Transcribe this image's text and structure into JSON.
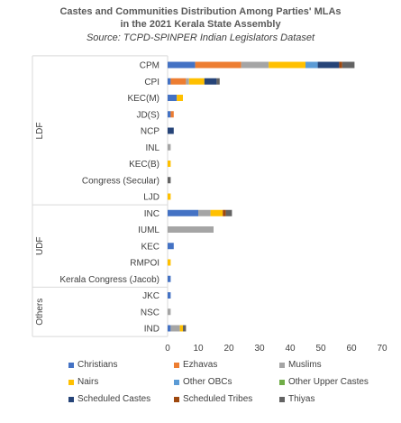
{
  "chart_data": {
    "type": "bar",
    "orientation": "horizontal",
    "stacked": true,
    "title_line1": "Castes and Communities Distribution Among Parties' MLAs",
    "title_line2": "in the 2021 Kerala State Assembly",
    "subtitle": "Source: TCPD-SPINPER Indian Legislators Dataset",
    "xlim": [
      0,
      70
    ],
    "xticks": [
      "0",
      "10",
      "20",
      "30",
      "40",
      "50",
      "60",
      "70"
    ],
    "xtick_values": [
      0,
      10,
      20,
      30,
      40,
      50,
      60,
      70
    ],
    "grid": false,
    "legend_position": "bottom",
    "groups": [
      {
        "name": "LDF",
        "categories": [
          "CPM",
          "CPI",
          "KEC(M)",
          "JD(S)",
          "NCP",
          "INL",
          "KEC(B)",
          "Congress (Secular)",
          "LJD"
        ]
      },
      {
        "name": "UDF",
        "categories": [
          "INC",
          "IUML",
          "KEC",
          "RMPOI",
          "Kerala Congress (Jacob)"
        ]
      },
      {
        "name": "Others",
        "categories": [
          "JKC",
          "NSC",
          "IND"
        ]
      }
    ],
    "series": [
      {
        "name": "Christians",
        "color": "#4472C4",
        "values": [
          9,
          1,
          3,
          1,
          0,
          0,
          0,
          0,
          0,
          10,
          0,
          2,
          0,
          1,
          1,
          0,
          1
        ]
      },
      {
        "name": "Ezhavas",
        "color": "#ED7D31",
        "values": [
          15,
          5,
          0,
          1,
          0,
          0,
          0,
          0,
          0,
          0,
          0,
          0,
          0,
          0,
          0,
          0,
          0
        ]
      },
      {
        "name": "Muslims",
        "color": "#A5A5A5",
        "values": [
          9,
          1,
          0,
          0,
          0,
          1,
          0,
          0,
          0,
          4,
          15,
          0,
          0,
          0,
          0,
          1,
          3
        ]
      },
      {
        "name": "Nairs",
        "color": "#FFC000",
        "values": [
          12,
          5,
          2,
          0,
          0,
          0,
          1,
          0,
          1,
          4,
          0,
          0,
          1,
          0,
          0,
          0,
          1
        ]
      },
      {
        "name": "Other OBCs",
        "color": "#5B9BD5",
        "values": [
          4,
          0,
          0,
          0,
          0,
          0,
          0,
          0,
          0,
          0,
          0,
          0,
          0,
          0,
          0,
          0,
          0
        ]
      },
      {
        "name": "Other Upper Castes",
        "color": "#70AD47",
        "values": [
          0,
          0,
          0,
          0,
          0,
          0,
          0,
          0,
          0,
          0,
          0,
          0,
          0,
          0,
          0,
          0,
          0
        ]
      },
      {
        "name": "Scheduled Castes",
        "color": "#264478",
        "values": [
          7,
          4,
          0,
          0,
          2,
          0,
          0,
          0,
          0,
          0,
          0,
          0,
          0,
          0,
          0,
          0,
          0
        ]
      },
      {
        "name": "Scheduled Tribes",
        "color": "#9E480E",
        "values": [
          1,
          0,
          0,
          0,
          0,
          0,
          0,
          0,
          0,
          1,
          0,
          0,
          0,
          0,
          0,
          0,
          0
        ]
      },
      {
        "name": "Thiyas",
        "color": "#636363",
        "values": [
          4,
          1,
          0,
          0,
          0,
          0,
          0,
          1,
          0,
          2,
          0,
          0,
          0,
          0,
          0,
          0,
          1
        ]
      }
    ]
  }
}
